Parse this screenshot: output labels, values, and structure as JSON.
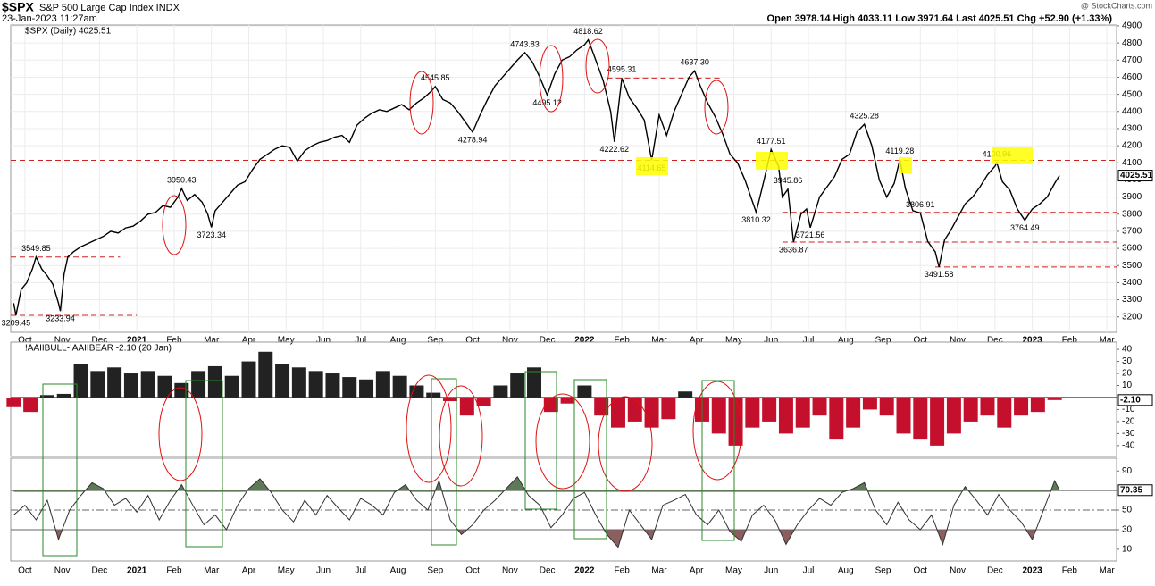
{
  "header": {
    "symbol": "$SPX",
    "name": "S&P 500 Large Cap Index INDX",
    "date": "23-Jan-2023 11:27am",
    "quote": "Open 3978.14  High 4033.11  Low 3971.64  Last 4025.51  Chg +52.90 (+1.33%)",
    "copyright": "@ StockCharts.com"
  },
  "chart_data": [
    {
      "type": "line",
      "title": "$SPX (Daily) 4025.51",
      "color": "#000000",
      "last_label": "4025.51",
      "x": [
        -0.3,
        -0.24,
        -0.1,
        0.05,
        0.2,
        0.3,
        0.45,
        0.6,
        0.75,
        0.9,
        0.95,
        1.05,
        1.15,
        1.3,
        1.5,
        1.7,
        1.9,
        2.1,
        2.3,
        2.5,
        2.7,
        2.9,
        3.1,
        3.3,
        3.5,
        3.7,
        3.9,
        4.1,
        4.2,
        4.35,
        4.55,
        4.75,
        4.9,
        5.0,
        5.1,
        5.3,
        5.5,
        5.7,
        5.9,
        6.1,
        6.3,
        6.5,
        6.7,
        6.9,
        7.1,
        7.3,
        7.5,
        7.7,
        7.9,
        8.1,
        8.3,
        8.5,
        8.7,
        8.9,
        9.1,
        9.3,
        9.5,
        9.7,
        9.9,
        10.1,
        10.3,
        10.5,
        10.7,
        10.9,
        11.0,
        11.2,
        11.4,
        11.6,
        11.8,
        12.0,
        12.2,
        12.4,
        12.6,
        12.8,
        13.0,
        13.2,
        13.4,
        13.6,
        13.8,
        14.0,
        14.2,
        14.4,
        14.6,
        14.8,
        15.0,
        15.1,
        15.3,
        15.5,
        15.7,
        15.8,
        16.0,
        16.2,
        16.4,
        16.6,
        16.8,
        17.0,
        17.2,
        17.4,
        17.6,
        17.8,
        17.95,
        18.1,
        18.3,
        18.5,
        18.7,
        18.9,
        19.1,
        19.3,
        19.6,
        19.8,
        20.0,
        20.2,
        20.3,
        20.45,
        20.6,
        20.8,
        20.95,
        21.05,
        21.3,
        21.5,
        21.7,
        21.9,
        22.1,
        22.3,
        22.5,
        22.7,
        22.9,
        23.1,
        23.3,
        23.45,
        23.6,
        23.8,
        24.0,
        24.2,
        24.4,
        24.5,
        24.65,
        24.8,
        25.0,
        25.2,
        25.4,
        25.6,
        25.8,
        26.0,
        26.05,
        26.2,
        26.4,
        26.6,
        26.8,
        27.0,
        27.2,
        27.4,
        27.6,
        27.73
      ],
      "values": [
        3280,
        3209.45,
        3360,
        3400,
        3480,
        3549.85,
        3480,
        3440,
        3390,
        3280,
        3233.94,
        3450,
        3550,
        3580,
        3610,
        3630,
        3650,
        3670,
        3700,
        3690,
        3720,
        3730,
        3760,
        3800,
        3810,
        3850,
        3840,
        3900,
        3950.43,
        3880,
        3915,
        3870,
        3800,
        3723.34,
        3820,
        3870,
        3920,
        3970,
        3990,
        4060,
        4120,
        4150,
        4180,
        4200,
        4190,
        4110,
        4170,
        4200,
        4220,
        4230,
        4250,
        4260,
        4220,
        4320,
        4360,
        4390,
        4410,
        4400,
        4420,
        4440,
        4410,
        4450,
        4480,
        4520,
        4545.85,
        4470,
        4450,
        4400,
        4340,
        4278.94,
        4380,
        4470,
        4550,
        4600,
        4650,
        4700,
        4743.83,
        4690,
        4600,
        4495.12,
        4620,
        4700,
        4720,
        4760,
        4790,
        4818.62,
        4700,
        4580,
        4400,
        4222.62,
        4595.31,
        4480,
        4420,
        4350,
        4114.65,
        4380,
        4260,
        4400,
        4500,
        4600,
        4637.3,
        4550,
        4450,
        4370,
        4270,
        4150,
        4100,
        4000,
        3810.32,
        3990,
        4177.51,
        4080,
        3900,
        3945.86,
        3636.87,
        3800,
        3830,
        3721.56,
        3900,
        3960,
        4020,
        4120,
        4150,
        4280,
        4325.28,
        4200,
        4000,
        3900,
        3980,
        4119.28,
        3950,
        3820,
        3806.91,
        3640,
        3580,
        3491.58,
        3650,
        3700,
        3780,
        3860,
        3900,
        3960,
        4030,
        4080,
        4100.96,
        3990,
        3940,
        3830,
        3764.49,
        3830,
        3860,
        3900,
        3980,
        4025.51
      ],
      "annotations": [
        {
          "x": -0.24,
          "value": 3209.45,
          "label": "3209.45"
        },
        {
          "x": 0.3,
          "value": 3549.85,
          "label": "3549.85"
        },
        {
          "x": 0.95,
          "value": 3233.94,
          "label": "3233.94"
        },
        {
          "x": 4.2,
          "value": 3950.43,
          "label": "3950.43"
        },
        {
          "x": 5.0,
          "value": 3723.34,
          "label": "3723.34"
        },
        {
          "x": 11.0,
          "value": 4545.85,
          "label": "4545.85"
        },
        {
          "x": 12.0,
          "value": 4278.94,
          "label": "4278.94"
        },
        {
          "x": 13.4,
          "value": 4743.83,
          "label": "4743.83"
        },
        {
          "x": 14.0,
          "value": 4495.12,
          "label": "4495.12"
        },
        {
          "x": 15.1,
          "value": 4818.62,
          "label": "4818.62"
        },
        {
          "x": 15.8,
          "value": 4222.62,
          "label": "4222.62"
        },
        {
          "x": 16.0,
          "value": 4595.31,
          "label": "4595.31"
        },
        {
          "x": 16.8,
          "value": 4114.65,
          "label": "4114.65"
        },
        {
          "x": 17.95,
          "value": 4637.3,
          "label": "4637.30"
        },
        {
          "x": 19.6,
          "value": 3810.32,
          "label": "3810.32"
        },
        {
          "x": 20.0,
          "value": 4177.51,
          "label": "4177.51"
        },
        {
          "x": 20.45,
          "value": 3945.86,
          "label": "3945.86"
        },
        {
          "x": 20.6,
          "value": 3636.87,
          "label": "3636.87"
        },
        {
          "x": 21.05,
          "value": 3721.56,
          "label": "3721.56"
        },
        {
          "x": 22.5,
          "value": 4325.28,
          "label": "4325.28"
        },
        {
          "x": 23.45,
          "value": 4119.28,
          "label": "4119.28"
        },
        {
          "x": 24.0,
          "value": 3806.91,
          "label": "3806.91"
        },
        {
          "x": 24.5,
          "value": 3491.58,
          "label": "3491.58"
        },
        {
          "x": 26.05,
          "value": 4100.96,
          "label": "4100.96"
        },
        {
          "x": 26.8,
          "value": 3764.49,
          "label": "3764.49"
        }
      ],
      "hline_color": "#cc2222",
      "hlines": [
        {
          "value": 3549.85,
          "x": [
            -0.38,
            2.55
          ]
        },
        {
          "value": 3209.45,
          "x": [
            -0.38,
            3.0
          ]
        },
        {
          "value": 4595.31,
          "x": [
            15.6,
            18.7
          ]
        },
        {
          "value": 4114.65,
          "x": [
            -0.38,
            29.26
          ]
        },
        {
          "value": 3810.32,
          "x": [
            20.3,
            29.26
          ]
        },
        {
          "value": 3636.87,
          "x": [
            20.3,
            29.26
          ]
        },
        {
          "value": 3491.58,
          "x": [
            24.4,
            29.26
          ]
        }
      ],
      "xlim": [
        -0.38,
        29.26
      ],
      "xticks": [
        {
          "value": 0,
          "label": "Oct"
        },
        {
          "value": 1,
          "label": "Nov"
        },
        {
          "value": 2,
          "label": "Dec"
        },
        {
          "value": 3,
          "label": "2021"
        },
        {
          "value": 4,
          "label": "Feb"
        },
        {
          "value": 5,
          "label": "Mar"
        },
        {
          "value": 6,
          "label": "Apr"
        },
        {
          "value": 7,
          "label": "May"
        },
        {
          "value": 8,
          "label": "Jun"
        },
        {
          "value": 9,
          "label": "Jul"
        },
        {
          "value": 10,
          "label": "Aug"
        },
        {
          "value": 11,
          "label": "Sep"
        },
        {
          "value": 12,
          "label": "Oct"
        },
        {
          "value": 13,
          "label": "Nov"
        },
        {
          "value": 14,
          "label": "Dec"
        },
        {
          "value": 15,
          "label": "2022"
        },
        {
          "value": 16,
          "label": "Feb"
        },
        {
          "value": 17,
          "label": "Mar"
        },
        {
          "value": 18,
          "label": "Apr"
        },
        {
          "value": 19,
          "label": "May"
        },
        {
          "value": 20,
          "label": "Jun"
        },
        {
          "value": 21,
          "label": "Jul"
        },
        {
          "value": 22,
          "label": "Aug"
        },
        {
          "value": 23,
          "label": "Sep"
        },
        {
          "value": 24,
          "label": "Oct"
        },
        {
          "value": 25,
          "label": "Nov"
        },
        {
          "value": 26,
          "label": "Dec"
        },
        {
          "value": 27,
          "label": "2023"
        },
        {
          "value": 28,
          "label": "Feb"
        },
        {
          "value": 29,
          "label": "Mar"
        }
      ],
      "ylim": [
        3110,
        4905
      ],
      "yticks": [
        3200,
        3300,
        3400,
        3500,
        3600,
        3700,
        3800,
        3900,
        4000,
        4100,
        4200,
        4300,
        4400,
        4500,
        4600,
        4700,
        4800,
        4900
      ],
      "grid": true
    },
    {
      "type": "bar",
      "title": "!AAIIBULL-!AAIIBEAR -2.10 (20 Jan)",
      "last_label": "-2.10",
      "positive_color": "#222222",
      "negative_color": "#c4102c",
      "zero_color": "#1a237e",
      "x": [
        -0.3,
        0.15,
        0.6,
        1.05,
        1.5,
        1.95,
        2.4,
        2.85,
        3.3,
        3.75,
        4.2,
        4.65,
        5.1,
        5.55,
        6.0,
        6.45,
        6.9,
        7.35,
        7.8,
        8.25,
        8.7,
        9.15,
        9.6,
        10.05,
        10.5,
        10.95,
        11.4,
        11.85,
        12.3,
        12.75,
        13.2,
        13.65,
        14.1,
        14.55,
        15.0,
        15.45,
        15.9,
        16.35,
        16.8,
        17.25,
        17.7,
        18.15,
        18.6,
        19.05,
        19.5,
        19.95,
        20.4,
        20.85,
        21.3,
        21.75,
        22.2,
        22.65,
        23.1,
        23.55,
        24.0,
        24.45,
        24.9,
        25.35,
        25.8,
        26.25,
        26.7,
        27.15,
        27.6
      ],
      "values": [
        -8,
        -12,
        2,
        3,
        28,
        22,
        25,
        20,
        22,
        18,
        12,
        22,
        26,
        18,
        30,
        38,
        28,
        25,
        22,
        20,
        17,
        15,
        22,
        18,
        10,
        4,
        -3,
        -15,
        -7,
        10,
        20,
        25,
        -12,
        -5,
        10,
        -15,
        -25,
        -20,
        -25,
        -18,
        5,
        -20,
        -30,
        -40,
        -25,
        -20,
        -30,
        -25,
        -15,
        -35,
        -25,
        -10,
        -15,
        -30,
        -35,
        -40,
        -30,
        -20,
        -15,
        -25,
        -15,
        -12,
        -2.1
      ],
      "xlim": [
        -0.38,
        29.26
      ],
      "ylim": [
        -49,
        46
      ],
      "yticks": [
        40,
        30,
        20,
        10,
        -10,
        -20,
        -30,
        -40
      ]
    },
    {
      "type": "line",
      "color": "#333333",
      "last_label": "70.35",
      "upper_fill": "#5c7a55",
      "lower_fill": "#8c5e5e",
      "x": [
        -0.3,
        0.0,
        0.3,
        0.6,
        0.9,
        1.2,
        1.5,
        1.8,
        2.1,
        2.4,
        2.7,
        3.0,
        3.3,
        3.6,
        3.9,
        4.2,
        4.5,
        4.8,
        5.1,
        5.4,
        5.7,
        6.0,
        6.3,
        6.6,
        6.9,
        7.2,
        7.5,
        7.8,
        8.1,
        8.4,
        8.7,
        9.0,
        9.3,
        9.6,
        9.9,
        10.2,
        10.5,
        10.8,
        11.1,
        11.4,
        11.7,
        12.0,
        12.3,
        12.6,
        12.9,
        13.2,
        13.5,
        13.8,
        14.1,
        14.4,
        14.7,
        15.0,
        15.3,
        15.6,
        15.9,
        16.2,
        16.5,
        16.8,
        17.1,
        17.4,
        17.7,
        18.0,
        18.3,
        18.6,
        18.9,
        19.2,
        19.5,
        19.8,
        20.1,
        20.4,
        20.7,
        21.0,
        21.3,
        21.6,
        21.9,
        22.2,
        22.5,
        22.8,
        23.1,
        23.4,
        23.7,
        24.0,
        24.3,
        24.6,
        24.9,
        25.2,
        25.5,
        25.8,
        26.1,
        26.4,
        26.7,
        27.0,
        27.3,
        27.6,
        27.73
      ],
      "values": [
        45,
        55,
        40,
        60,
        20,
        50,
        65,
        78,
        72,
        55,
        62,
        48,
        65,
        40,
        60,
        76,
        55,
        35,
        45,
        30,
        55,
        72,
        82,
        68,
        50,
        38,
        60,
        45,
        65,
        52,
        40,
        62,
        55,
        45,
        68,
        76,
        60,
        50,
        80,
        40,
        25,
        35,
        50,
        60,
        72,
        84,
        65,
        55,
        32,
        45,
        62,
        68,
        45,
        25,
        12,
        50,
        35,
        20,
        55,
        60,
        66,
        45,
        35,
        50,
        28,
        18,
        45,
        55,
        40,
        15,
        35,
        50,
        62,
        55,
        68,
        72,
        78,
        50,
        35,
        58,
        40,
        30,
        45,
        15,
        55,
        74,
        60,
        45,
        66,
        50,
        38,
        20,
        50,
        80,
        70.35
      ],
      "hlines": [
        {
          "value": 70,
          "style": "solid"
        },
        {
          "value": 50,
          "style": "dashdot"
        },
        {
          "value": 30,
          "style": "solid"
        }
      ],
      "xlim": [
        -0.38,
        29.26
      ],
      "xticks": [
        {
          "value": 0,
          "label": "Oct"
        },
        {
          "value": 1,
          "label": "Nov"
        },
        {
          "value": 2,
          "label": "Dec"
        },
        {
          "value": 3,
          "label": "2021"
        },
        {
          "value": 4,
          "label": "Feb"
        },
        {
          "value": 5,
          "label": "Mar"
        },
        {
          "value": 6,
          "label": "Apr"
        },
        {
          "value": 7,
          "label": "May"
        },
        {
          "value": 8,
          "label": "Jun"
        },
        {
          "value": 9,
          "label": "Jul"
        },
        {
          "value": 10,
          "label": "Aug"
        },
        {
          "value": 11,
          "label": "Sep"
        },
        {
          "value": 12,
          "label": "Oct"
        },
        {
          "value": 13,
          "label": "Nov"
        },
        {
          "value": 14,
          "label": "Dec"
        },
        {
          "value": 15,
          "label": "2022"
        },
        {
          "value": 16,
          "label": "Feb"
        },
        {
          "value": 17,
          "label": "Mar"
        },
        {
          "value": 18,
          "label": "Apr"
        },
        {
          "value": 19,
          "label": "May"
        },
        {
          "value": 20,
          "label": "Jun"
        },
        {
          "value": 21,
          "label": "Jul"
        },
        {
          "value": 22,
          "label": "Aug"
        },
        {
          "value": 23,
          "label": "Sep"
        },
        {
          "value": 24,
          "label": "Oct"
        },
        {
          "value": 25,
          "label": "Nov"
        },
        {
          "value": 26,
          "label": "Dec"
        },
        {
          "value": 27,
          "label": "2023"
        },
        {
          "value": 28,
          "label": "Feb"
        },
        {
          "value": 29,
          "label": "Mar"
        }
      ],
      "ylim": [
        -2,
        103
      ],
      "yticks": [
        90,
        50,
        30,
        10
      ]
    }
  ]
}
